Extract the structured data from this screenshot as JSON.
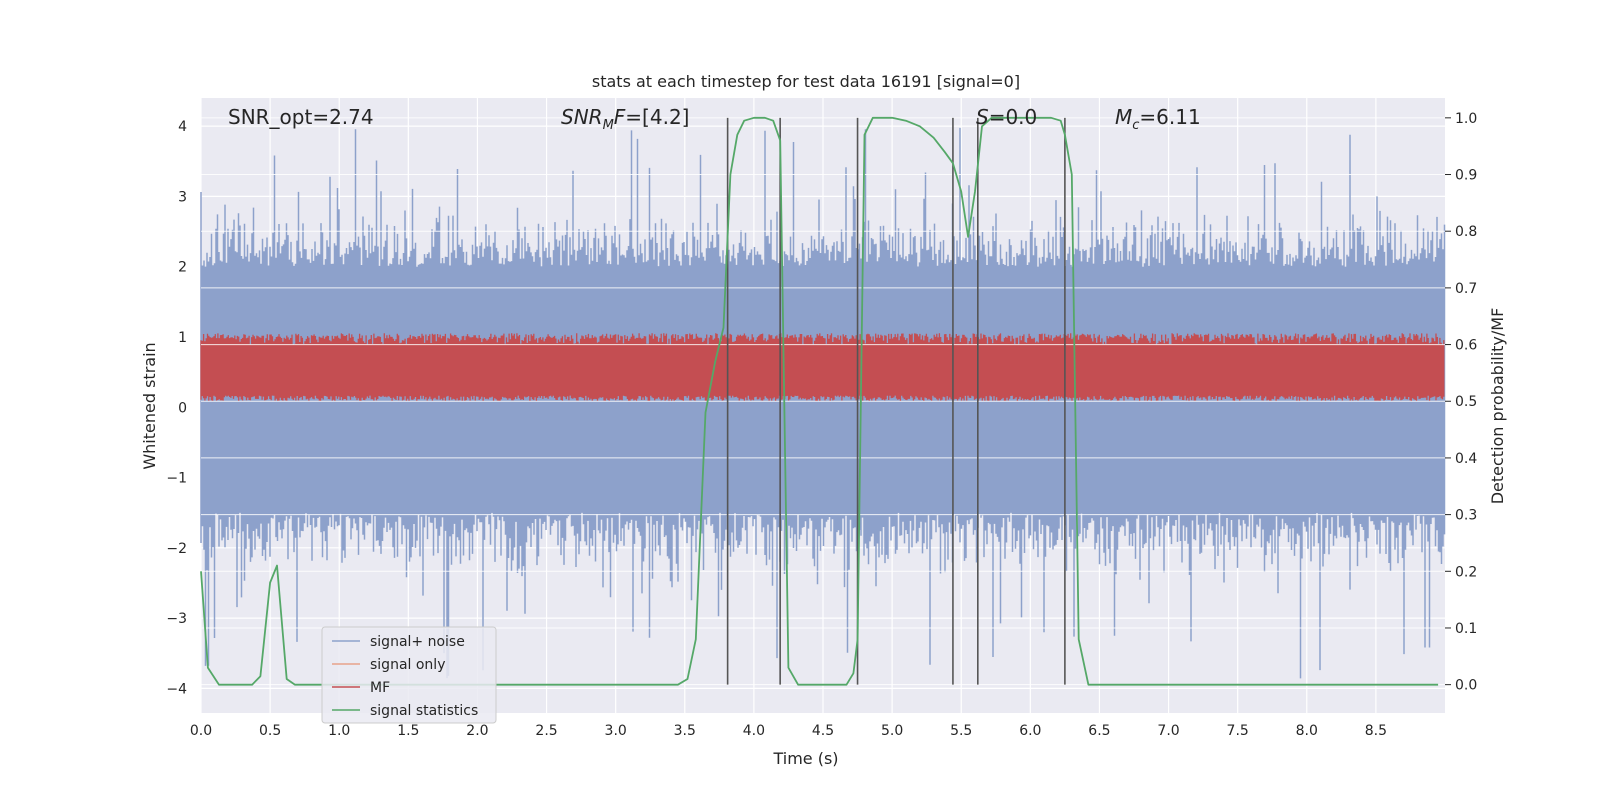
{
  "chart_data": {
    "type": "line",
    "title": "stats at each timestep for test data 16191 [signal=0]",
    "xlabel": "Time (s)",
    "ylabel_left": "Whitened strain",
    "ylabel_right": "Detection probability/MF",
    "xlim": [
      0.0,
      9.0
    ],
    "ylim_left": [
      -4.35,
      4.4
    ],
    "ylim_right": [
      -0.05,
      1.035
    ],
    "x_ticks": [
      0.0,
      0.5,
      1.0,
      1.5,
      2.0,
      2.5,
      3.0,
      3.5,
      4.0,
      4.5,
      5.0,
      5.5,
      6.0,
      6.5,
      7.0,
      7.5,
      8.0,
      8.5
    ],
    "x_tick_labels": [
      "0.0",
      "0.5",
      "1.0",
      "1.5",
      "2.0",
      "2.5",
      "3.0",
      "3.5",
      "4.0",
      "4.5",
      "5.0",
      "5.5",
      "6.0",
      "6.5",
      "7.0",
      "7.5",
      "8.0",
      "8.5"
    ],
    "y_left_ticks": [
      -4,
      -3,
      -2,
      -1,
      0,
      1,
      2,
      3,
      4
    ],
    "y_left_tick_labels": [
      "−4",
      "−3",
      "−2",
      "−1",
      "0",
      "1",
      "2",
      "3",
      "4"
    ],
    "y_right_ticks": [
      0.0,
      0.1,
      0.2,
      0.3,
      0.4,
      0.5,
      0.6,
      0.7,
      0.8,
      0.9,
      1.0
    ],
    "y_right_tick_labels": [
      "0.0",
      "0.1",
      "0.2",
      "0.3",
      "0.4",
      "0.5",
      "0.6",
      "0.7",
      "0.8",
      "0.9",
      "1.0"
    ],
    "annotations": [
      {
        "x": 0.2,
        "text": "SNR_opt=2.74"
      },
      {
        "x": 2.6,
        "text": "SNR_MF=[4.2]"
      },
      {
        "x": 5.6,
        "text": "S=0.0"
      },
      {
        "x": 6.6,
        "text": "M_c=6.11"
      }
    ],
    "vertical_lines": [
      3.81,
      4.19,
      4.75,
      5.44,
      5.62,
      6.25
    ],
    "vertical_line_range": [
      0.0,
      1.0
    ],
    "noise_band": {
      "x_range": [
        0.0,
        9.0
      ],
      "typical": [
        -1.5,
        2.0
      ],
      "spike_max": 4.0,
      "spike_min": -3.9
    },
    "mf_band": {
      "x_range": [
        0.0,
        9.0
      ],
      "typical": [
        0.5,
        0.6
      ],
      "peak": 0.62
    },
    "series": [
      {
        "name": "signal+ noise",
        "color": "#8da1cb"
      },
      {
        "name": "signal only",
        "color": "#e8a28a"
      },
      {
        "name": "MF",
        "color": "#c44e52"
      },
      {
        "name": "signal statistics",
        "color": "#55a868",
        "axis": "right",
        "x": [
          0.0,
          0.05,
          0.13,
          0.2,
          0.28,
          0.37,
          0.43,
          0.5,
          0.55,
          0.62,
          0.68,
          1.0,
          2.0,
          3.0,
          3.45,
          3.52,
          3.58,
          3.65,
          3.72,
          3.78,
          3.83,
          3.88,
          3.93,
          4.0,
          4.08,
          4.14,
          4.19,
          4.25,
          4.32,
          4.4,
          4.5,
          4.6,
          4.67,
          4.72,
          4.75,
          4.8,
          4.86,
          5.0,
          5.1,
          5.2,
          5.3,
          5.38,
          5.44,
          5.5,
          5.55,
          5.6,
          5.65,
          5.72,
          5.8,
          6.0,
          6.15,
          6.22,
          6.25,
          6.3,
          6.35,
          6.42,
          6.5,
          7.0,
          8.0,
          8.95
        ],
        "values": [
          0.2,
          0.03,
          0.0,
          0.0,
          0.0,
          0.0,
          0.015,
          0.18,
          0.21,
          0.01,
          0.0,
          0.0,
          0.0,
          0.0,
          0.0,
          0.01,
          0.08,
          0.48,
          0.57,
          0.63,
          0.9,
          0.97,
          0.995,
          1.0,
          1.0,
          0.995,
          0.96,
          0.03,
          0.0,
          0.0,
          0.0,
          0.0,
          0.0,
          0.02,
          0.08,
          0.97,
          1.0,
          1.0,
          0.995,
          0.985,
          0.965,
          0.94,
          0.92,
          0.87,
          0.79,
          0.87,
          0.985,
          1.0,
          1.0,
          1.0,
          1.0,
          0.995,
          0.97,
          0.9,
          0.08,
          0.0,
          0.0,
          0.0,
          0.0,
          0.0
        ]
      }
    ],
    "legend_position": "lower-left"
  }
}
